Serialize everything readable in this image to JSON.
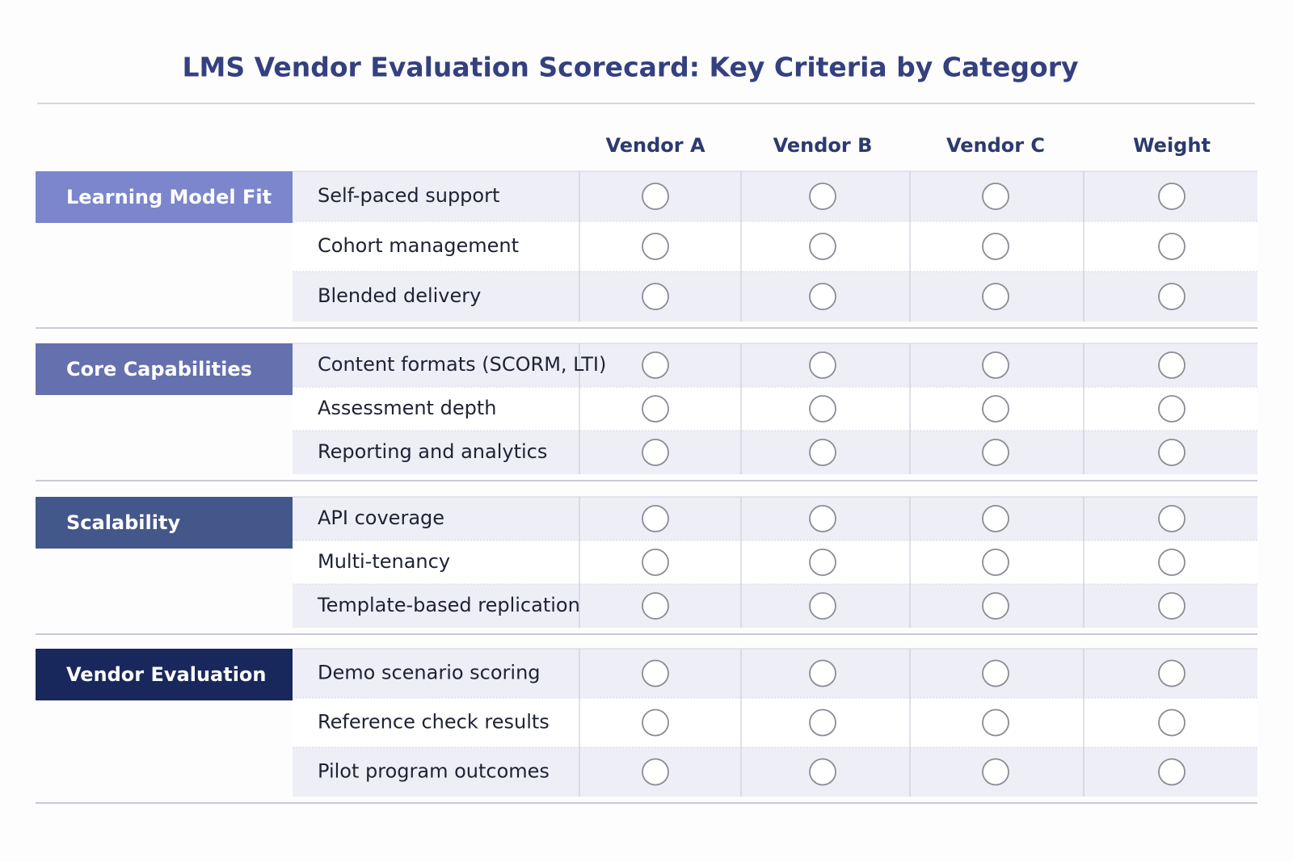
{
  "title": "LMS Vendor Evaluation Scorecard: Key Criteria by Category",
  "columns": [
    "Vendor A",
    "Vendor B",
    "Vendor C",
    "Weight"
  ],
  "groups": [
    {
      "category": "Learning Model Fit",
      "criteria": [
        "Self-paced support",
        "Cohort management",
        "Blended delivery"
      ]
    },
    {
      "category": "Core Capabilities",
      "criteria": [
        "Content formats (SCORM, LTI)",
        "Assessment depth",
        "Reporting and analytics"
      ]
    },
    {
      "category": "Scalability",
      "criteria": [
        "API coverage",
        "Multi-tenancy",
        "Template-based replication"
      ]
    },
    {
      "category": "Vendor Evaluation",
      "criteria": [
        "Demo scenario scoring",
        "Reference check results",
        "Pilot program outcomes"
      ]
    }
  ]
}
